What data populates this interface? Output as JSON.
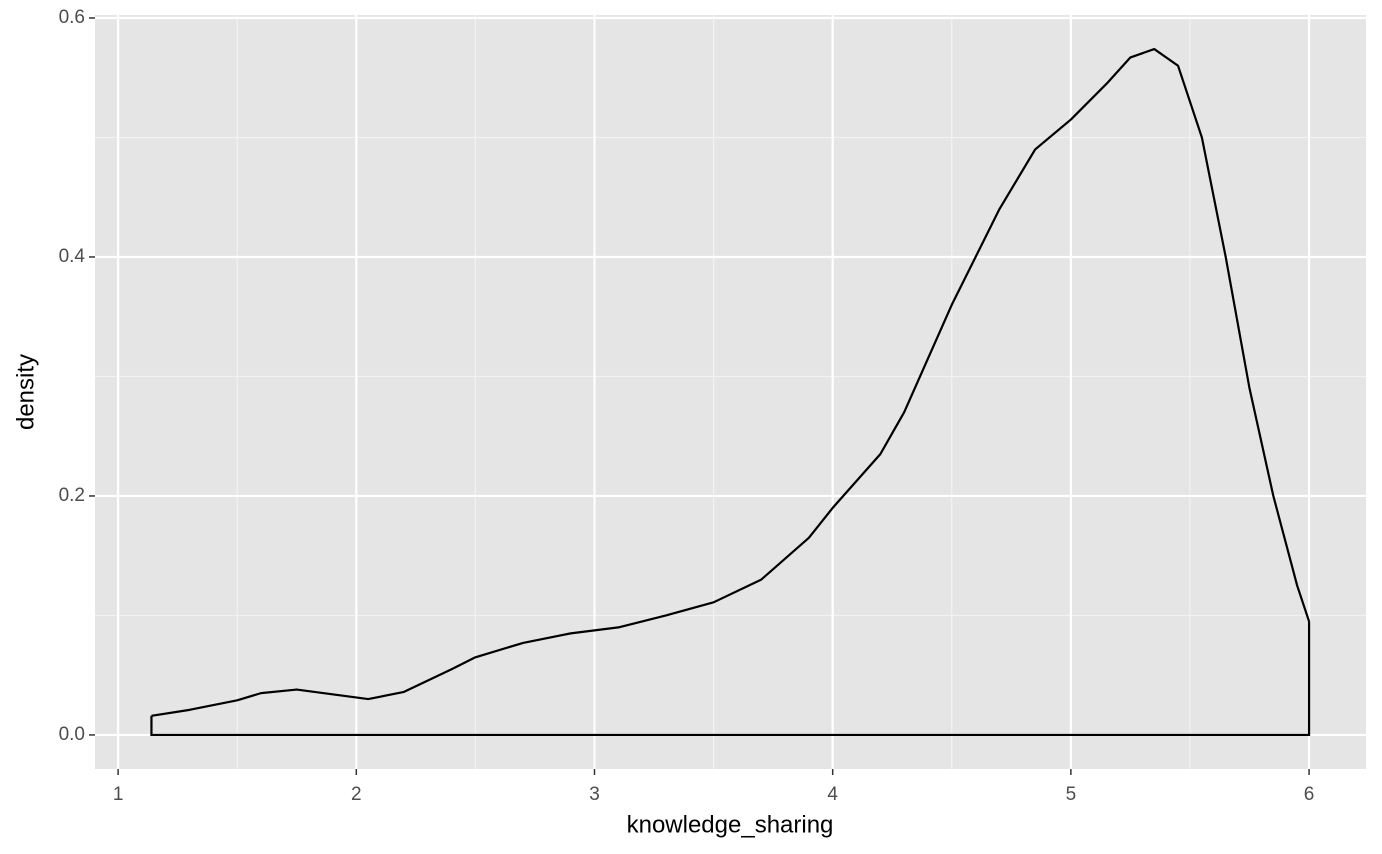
{
  "chart_data": {
    "type": "density",
    "x_label": "knowledge_sharing",
    "y_label": "density",
    "x": [
      1.14,
      1.3,
      1.5,
      1.6,
      1.75,
      1.9,
      2.05,
      2.2,
      2.4,
      2.5,
      2.7,
      2.9,
      3.1,
      3.3,
      3.5,
      3.7,
      3.9,
      4.0,
      4.2,
      4.3,
      4.5,
      4.7,
      4.85,
      5.0,
      5.15,
      5.25,
      5.35,
      5.45,
      5.55,
      5.65,
      5.75,
      5.85,
      5.95,
      6.0
    ],
    "values": [
      0.016,
      0.021,
      0.029,
      0.035,
      0.038,
      0.034,
      0.03,
      0.036,
      0.055,
      0.065,
      0.077,
      0.085,
      0.09,
      0.1,
      0.111,
      0.13,
      0.165,
      0.19,
      0.235,
      0.27,
      0.36,
      0.44,
      0.49,
      0.515,
      0.545,
      0.567,
      0.574,
      0.56,
      0.5,
      0.4,
      0.29,
      0.2,
      0.125,
      0.095
    ],
    "color": "#000000",
    "panel_color": "#e5e5e5",
    "grid": true,
    "xlim": [
      0.903,
      6.239
    ],
    "xticks": [
      1,
      2,
      3,
      4,
      5,
      6
    ],
    "ylim": [
      -0.0285,
      0.6025
    ],
    "yticks": [
      {
        "value": 0,
        "label": "0.0"
      },
      {
        "value": 0.2,
        "label": "0.2"
      },
      {
        "value": 0.4,
        "label": "0.4"
      },
      {
        "value": 0.6,
        "label": "0.6"
      }
    ]
  }
}
